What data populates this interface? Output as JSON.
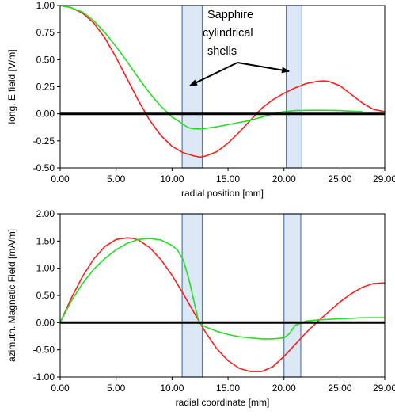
{
  "chart_data": [
    {
      "type": "line",
      "id": "top",
      "xlabel": "radial position [mm]",
      "ylabel": "long. E field [V/m]",
      "xlim": [
        0,
        29
      ],
      "ylim": [
        -0.5,
        1.0
      ],
      "xticks": [
        "0.00",
        "5.00",
        "10.00",
        "15.00",
        "20.00",
        "25.00",
        "29.00"
      ],
      "xtick_values": [
        0,
        5,
        10,
        15,
        20,
        25,
        29
      ],
      "yticks": [
        "-0.50",
        "-0.25",
        "0.00",
        "0.25",
        "0.50",
        "0.75",
        "1.00"
      ],
      "ytick_values": [
        -0.5,
        -0.25,
        0,
        0.25,
        0.5,
        0.75,
        1.0
      ],
      "grid": false,
      "shaded_regions": [
        [
          10.9,
          12.7
        ],
        [
          20.2,
          21.6
        ]
      ],
      "zero_line": 0,
      "annotation": {
        "lines": [
          "Sapphire",
          "cylindrical",
          "shells"
        ],
        "arrow_targets": [
          [
            11.7,
            0.3
          ],
          [
            20.2,
            0.4
          ]
        ]
      },
      "series": [
        {
          "color": "#ff1e1e",
          "x": [
            0,
            1,
            2,
            3,
            4,
            5,
            6,
            7,
            8,
            9,
            10,
            11,
            12,
            12.5,
            13,
            14,
            15,
            16,
            17,
            18,
            19,
            20,
            21,
            22,
            23,
            23.5,
            24,
            25,
            26,
            27,
            28,
            29
          ],
          "y": [
            1.0,
            0.98,
            0.93,
            0.84,
            0.7,
            0.52,
            0.32,
            0.12,
            -0.06,
            -0.2,
            -0.3,
            -0.36,
            -0.39,
            -0.4,
            -0.39,
            -0.35,
            -0.27,
            -0.17,
            -0.06,
            0.05,
            0.13,
            0.19,
            0.24,
            0.28,
            0.3,
            0.305,
            0.3,
            0.26,
            0.18,
            0.1,
            0.04,
            0.02
          ]
        },
        {
          "color": "#22e022",
          "x": [
            0,
            1,
            2,
            3,
            4,
            5,
            6,
            7,
            8,
            9,
            10,
            10.5,
            11,
            11.5,
            12,
            12.5,
            13,
            14,
            15,
            16,
            17,
            18,
            19,
            20,
            20.5,
            21,
            22,
            23,
            24,
            25,
            26,
            27
          ],
          "y": [
            1.0,
            0.98,
            0.94,
            0.86,
            0.75,
            0.62,
            0.48,
            0.33,
            0.19,
            0.07,
            -0.03,
            -0.06,
            -0.1,
            -0.13,
            -0.14,
            -0.14,
            -0.135,
            -0.12,
            -0.1,
            -0.08,
            -0.06,
            -0.03,
            0.0,
            0.02,
            0.025,
            0.03,
            0.032,
            0.033,
            0.032,
            0.03,
            0.025,
            0.02
          ]
        },
        {
          "color": "#000000",
          "x": [
            0,
            29
          ],
          "y": [
            0,
            0
          ]
        }
      ]
    },
    {
      "type": "line",
      "id": "bottom",
      "xlabel": "radial coordinate [mm]",
      "ylabel": "azimuth. Magnetic Field [mA/m]",
      "xlim": [
        0,
        29
      ],
      "ylim": [
        -1.0,
        2.0
      ],
      "xticks": [
        "0.00",
        "5.00",
        "10.00",
        "15.00",
        "20.00",
        "25.00",
        "29.00"
      ],
      "xtick_values": [
        0,
        5,
        10,
        15,
        20,
        25,
        29
      ],
      "yticks": [
        "-1.00",
        "-0.50",
        "0.00",
        "0.50",
        "1.00",
        "1.50",
        "2.00"
      ],
      "ytick_values": [
        -1.0,
        -0.5,
        0,
        0.5,
        1.0,
        1.5,
        2.0
      ],
      "grid": false,
      "shaded_regions": [
        [
          10.9,
          12.7
        ],
        [
          20.0,
          21.5
        ]
      ],
      "zero_line": 0,
      "series": [
        {
          "color": "#ff1e1e",
          "x": [
            0,
            1,
            2,
            3,
            4,
            5,
            6,
            6.5,
            7,
            8,
            9,
            10,
            11,
            12,
            13,
            14,
            15,
            16,
            17,
            18,
            19,
            20,
            21,
            22,
            23,
            24,
            25,
            26,
            27,
            28,
            29
          ],
          "y": [
            0.0,
            0.45,
            0.85,
            1.17,
            1.4,
            1.53,
            1.56,
            1.55,
            1.52,
            1.38,
            1.16,
            0.87,
            0.53,
            0.17,
            -0.18,
            -0.48,
            -0.7,
            -0.84,
            -0.9,
            -0.9,
            -0.81,
            -0.62,
            -0.4,
            -0.18,
            0.02,
            0.2,
            0.38,
            0.53,
            0.65,
            0.72,
            0.73
          ]
        },
        {
          "color": "#22e022",
          "x": [
            0,
            1,
            2,
            3,
            4,
            5,
            6,
            7,
            8,
            9,
            10,
            10.5,
            11,
            11.5,
            12,
            12.3,
            12.6,
            13,
            14,
            15,
            16,
            17,
            18,
            19,
            20,
            20.5,
            21,
            22,
            23,
            24,
            25,
            26,
            27,
            28,
            29
          ],
          "y": [
            0.0,
            0.4,
            0.72,
            0.98,
            1.18,
            1.34,
            1.46,
            1.53,
            1.55,
            1.52,
            1.42,
            1.33,
            1.15,
            0.8,
            0.35,
            0.08,
            -0.04,
            -0.08,
            -0.16,
            -0.22,
            -0.26,
            -0.28,
            -0.3,
            -0.3,
            -0.28,
            -0.2,
            -0.05,
            0.03,
            0.05,
            0.06,
            0.07,
            0.08,
            0.09,
            0.09,
            0.09
          ]
        },
        {
          "color": "#000000",
          "x": [
            0,
            29
          ],
          "y": [
            0,
            0
          ]
        }
      ]
    }
  ]
}
